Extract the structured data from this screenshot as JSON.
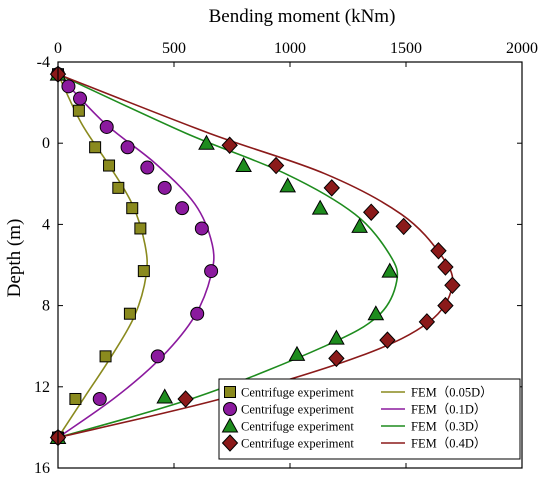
{
  "chart_data": {
    "type": "scatter",
    "xlabel": "Bending moment (kNm)",
    "ylabel": "Depth (m)",
    "xlim": [
      0,
      2000
    ],
    "ylim": [
      -4,
      16
    ],
    "x_axis_position": "top",
    "y_axis_inverted": true,
    "x_ticks": [
      "0",
      "500",
      "1000",
      "1500",
      "2000"
    ],
    "y_ticks": [
      "-4",
      "0",
      "4",
      "8",
      "12",
      "16"
    ],
    "grid": false,
    "legend_position": "bottom-right",
    "series": [
      {
        "name": "Centrifuge experiment",
        "kind": "scatter",
        "marker": "square",
        "color": "#8a8a1e",
        "points": [
          {
            "x": 0,
            "y": -3.4
          },
          {
            "x": 90,
            "y": -1.6
          },
          {
            "x": 160,
            "y": 0.2
          },
          {
            "x": 220,
            "y": 1.1
          },
          {
            "x": 260,
            "y": 2.2
          },
          {
            "x": 320,
            "y": 3.2
          },
          {
            "x": 355,
            "y": 4.2
          },
          {
            "x": 370,
            "y": 6.3
          },
          {
            "x": 310,
            "y": 8.4
          },
          {
            "x": 205,
            "y": 10.5
          },
          {
            "x": 75,
            "y": 12.6
          },
          {
            "x": 0,
            "y": 14.5
          }
        ]
      },
      {
        "name": "Centrifuge experiment",
        "kind": "scatter",
        "marker": "circle",
        "color": "#8b1a9e",
        "points": [
          {
            "x": 0,
            "y": -3.4
          },
          {
            "x": 45,
            "y": -2.8
          },
          {
            "x": 95,
            "y": -2.2
          },
          {
            "x": 210,
            "y": -0.8
          },
          {
            "x": 300,
            "y": 0.2
          },
          {
            "x": 385,
            "y": 1.2
          },
          {
            "x": 460,
            "y": 2.2
          },
          {
            "x": 535,
            "y": 3.2
          },
          {
            "x": 620,
            "y": 4.2
          },
          {
            "x": 660,
            "y": 6.3
          },
          {
            "x": 600,
            "y": 8.4
          },
          {
            "x": 430,
            "y": 10.5
          },
          {
            "x": 180,
            "y": 12.6
          },
          {
            "x": 0,
            "y": 14.5
          }
        ]
      },
      {
        "name": "Centrifuge experiment",
        "kind": "scatter",
        "marker": "triangle",
        "color": "#1e8c1e",
        "points": [
          {
            "x": 0,
            "y": -3.4
          },
          {
            "x": 640,
            "y": 0.0
          },
          {
            "x": 800,
            "y": 1.1
          },
          {
            "x": 990,
            "y": 2.1
          },
          {
            "x": 1130,
            "y": 3.2
          },
          {
            "x": 1300,
            "y": 4.1
          },
          {
            "x": 1430,
            "y": 6.3
          },
          {
            "x": 1370,
            "y": 8.4
          },
          {
            "x": 1200,
            "y": 9.6
          },
          {
            "x": 1030,
            "y": 10.4
          },
          {
            "x": 460,
            "y": 12.5
          },
          {
            "x": 0,
            "y": 14.5
          }
        ]
      },
      {
        "name": "Centrifuge experiment",
        "kind": "scatter",
        "marker": "diamond",
        "color": "#8b1a1a",
        "points": [
          {
            "x": 0,
            "y": -3.4
          },
          {
            "x": 740,
            "y": 0.1
          },
          {
            "x": 940,
            "y": 1.1
          },
          {
            "x": 1180,
            "y": 2.2
          },
          {
            "x": 1350,
            "y": 3.4
          },
          {
            "x": 1490,
            "y": 4.1
          },
          {
            "x": 1640,
            "y": 5.3
          },
          {
            "x": 1670,
            "y": 6.1
          },
          {
            "x": 1700,
            "y": 7.0
          },
          {
            "x": 1670,
            "y": 8.0
          },
          {
            "x": 1590,
            "y": 8.8
          },
          {
            "x": 1420,
            "y": 9.7
          },
          {
            "x": 1200,
            "y": 10.6
          },
          {
            "x": 550,
            "y": 12.6
          },
          {
            "x": 0,
            "y": 14.5
          }
        ]
      },
      {
        "name": "FEM（0.05D）",
        "kind": "line",
        "color": "#8a8a1e",
        "points": [
          {
            "x": 0,
            "y": -3.4
          },
          {
            "x": 100,
            "y": -1.0
          },
          {
            "x": 215,
            "y": 1.0
          },
          {
            "x": 320,
            "y": 3.0
          },
          {
            "x": 375,
            "y": 5.0
          },
          {
            "x": 380,
            "y": 6.5
          },
          {
            "x": 330,
            "y": 8.5
          },
          {
            "x": 230,
            "y": 10.5
          },
          {
            "x": 115,
            "y": 12.5
          },
          {
            "x": 0,
            "y": 14.5
          }
        ]
      },
      {
        "name": "FEM（0.1D）",
        "kind": "line",
        "color": "#8b1a9e",
        "points": [
          {
            "x": 0,
            "y": -3.4
          },
          {
            "x": 200,
            "y": -1.0
          },
          {
            "x": 420,
            "y": 1.0
          },
          {
            "x": 590,
            "y": 3.0
          },
          {
            "x": 665,
            "y": 5.0
          },
          {
            "x": 660,
            "y": 6.5
          },
          {
            "x": 590,
            "y": 8.5
          },
          {
            "x": 450,
            "y": 10.5
          },
          {
            "x": 250,
            "y": 12.5
          },
          {
            "x": 0,
            "y": 14.5
          }
        ]
      },
      {
        "name": "FEM（0.3D）",
        "kind": "line",
        "color": "#1e8c1e",
        "points": [
          {
            "x": 0,
            "y": -3.4
          },
          {
            "x": 550,
            "y": -0.5
          },
          {
            "x": 980,
            "y": 1.5
          },
          {
            "x": 1280,
            "y": 3.5
          },
          {
            "x": 1430,
            "y": 5.5
          },
          {
            "x": 1460,
            "y": 6.8
          },
          {
            "x": 1380,
            "y": 8.5
          },
          {
            "x": 1150,
            "y": 10.0
          },
          {
            "x": 600,
            "y": 12.5
          },
          {
            "x": 0,
            "y": 14.5
          }
        ]
      },
      {
        "name": "FEM（0.4D）",
        "kind": "line",
        "color": "#8b1a1a",
        "points": [
          {
            "x": 0,
            "y": -3.4
          },
          {
            "x": 650,
            "y": -0.5
          },
          {
            "x": 1150,
            "y": 1.5
          },
          {
            "x": 1480,
            "y": 3.5
          },
          {
            "x": 1650,
            "y": 5.5
          },
          {
            "x": 1700,
            "y": 7.0
          },
          {
            "x": 1600,
            "y": 8.8
          },
          {
            "x": 1300,
            "y": 10.5
          },
          {
            "x": 700,
            "y": 12.6
          },
          {
            "x": 0,
            "y": 14.5
          }
        ]
      }
    ]
  },
  "colors": {
    "axis": "#000000",
    "background": "#ffffff",
    "marker_stroke": "#000000"
  }
}
